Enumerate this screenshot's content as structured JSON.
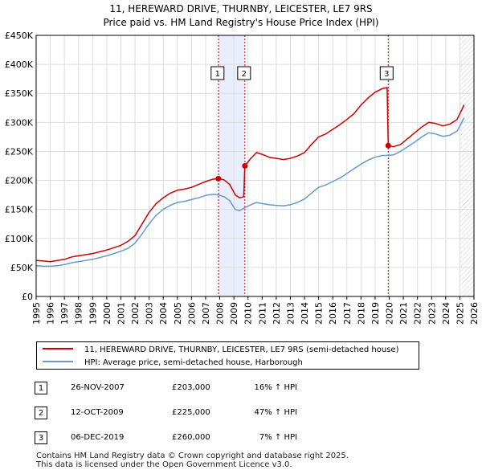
{
  "title_line1": "11, HEREWARD DRIVE, THURNBY, LEICESTER, LE7 9RS",
  "title_line2": "Price paid vs. HM Land Registry's House Price Index (HPI)",
  "chart_data": {
    "type": "line",
    "title": "11, HEREWARD DRIVE, THURNBY, LEICESTER, LE7 9RS — Price paid vs. HM Land Registry's House Price Index (HPI)",
    "xlabel": "",
    "ylabel": "",
    "xlim": [
      1995,
      2026
    ],
    "ylim": [
      0,
      450000
    ],
    "x_ticks": [
      1995,
      1996,
      1997,
      1998,
      1999,
      2000,
      2001,
      2002,
      2003,
      2004,
      2005,
      2006,
      2007,
      2008,
      2009,
      2010,
      2011,
      2012,
      2013,
      2014,
      2015,
      2016,
      2017,
      2018,
      2019,
      2020,
      2021,
      2022,
      2023,
      2024,
      2025,
      2026
    ],
    "y_ticks": [
      {
        "value": 0,
        "label": "£0"
      },
      {
        "value": 50000,
        "label": "£50K"
      },
      {
        "value": 100000,
        "label": "£100K"
      },
      {
        "value": 150000,
        "label": "£150K"
      },
      {
        "value": 200000,
        "label": "£200K"
      },
      {
        "value": 250000,
        "label": "£250K"
      },
      {
        "value": 300000,
        "label": "£300K"
      },
      {
        "value": 350000,
        "label": "£350K"
      },
      {
        "value": 400000,
        "label": "£400K"
      },
      {
        "value": 450000,
        "label": "£450K"
      }
    ],
    "grid": true,
    "shaded_ranges": [
      [
        2007.9,
        2009.78
      ]
    ],
    "hatched_after": 2025.0,
    "series": [
      {
        "name": "11, HEREWARD DRIVE, THURNBY, LEICESTER, LE7 9RS (semi-detached house)",
        "color": "#cc0000",
        "points": [
          [
            1995.0,
            62000
          ],
          [
            1995.5,
            61000
          ],
          [
            1996.0,
            60000
          ],
          [
            1996.5,
            62000
          ],
          [
            1997.0,
            64000
          ],
          [
            1997.5,
            68000
          ],
          [
            1998.0,
            70000
          ],
          [
            1998.5,
            72000
          ],
          [
            1999.0,
            74000
          ],
          [
            1999.5,
            77000
          ],
          [
            2000.0,
            80000
          ],
          [
            2000.5,
            84000
          ],
          [
            2001.0,
            88000
          ],
          [
            2001.5,
            95000
          ],
          [
            2002.0,
            105000
          ],
          [
            2002.5,
            125000
          ],
          [
            2003.0,
            145000
          ],
          [
            2003.5,
            160000
          ],
          [
            2004.0,
            170000
          ],
          [
            2004.5,
            178000
          ],
          [
            2005.0,
            183000
          ],
          [
            2005.5,
            185000
          ],
          [
            2006.0,
            188000
          ],
          [
            2006.5,
            193000
          ],
          [
            2007.0,
            198000
          ],
          [
            2007.5,
            202000
          ],
          [
            2007.9,
            203000
          ],
          [
            2008.3,
            201000
          ],
          [
            2008.7,
            193000
          ],
          [
            2009.1,
            175000
          ],
          [
            2009.4,
            170000
          ],
          [
            2009.7,
            172000
          ],
          [
            2009.78,
            225000
          ],
          [
            2010.2,
            238000
          ],
          [
            2010.6,
            248000
          ],
          [
            2011.0,
            245000
          ],
          [
            2011.5,
            240000
          ],
          [
            2012.0,
            238000
          ],
          [
            2012.5,
            236000
          ],
          [
            2013.0,
            238000
          ],
          [
            2013.5,
            242000
          ],
          [
            2014.0,
            248000
          ],
          [
            2014.5,
            262000
          ],
          [
            2015.0,
            275000
          ],
          [
            2015.5,
            280000
          ],
          [
            2016.0,
            288000
          ],
          [
            2016.5,
            296000
          ],
          [
            2017.0,
            305000
          ],
          [
            2017.5,
            315000
          ],
          [
            2018.0,
            330000
          ],
          [
            2018.5,
            342000
          ],
          [
            2019.0,
            352000
          ],
          [
            2019.5,
            358000
          ],
          [
            2019.85,
            360000
          ],
          [
            2019.93,
            260000
          ],
          [
            2020.3,
            258000
          ],
          [
            2020.8,
            262000
          ],
          [
            2021.3,
            272000
          ],
          [
            2021.8,
            282000
          ],
          [
            2022.3,
            292000
          ],
          [
            2022.8,
            300000
          ],
          [
            2023.3,
            298000
          ],
          [
            2023.8,
            294000
          ],
          [
            2024.3,
            297000
          ],
          [
            2024.8,
            305000
          ],
          [
            2025.1,
            320000
          ],
          [
            2025.3,
            330000
          ]
        ]
      },
      {
        "name": "HPI: Average price, semi-detached house, Harborough",
        "color": "#6699cc",
        "points": [
          [
            1995.0,
            53000
          ],
          [
            1995.5,
            52000
          ],
          [
            1996.0,
            52000
          ],
          [
            1996.5,
            53000
          ],
          [
            1997.0,
            55000
          ],
          [
            1997.5,
            58000
          ],
          [
            1998.0,
            60000
          ],
          [
            1998.5,
            62000
          ],
          [
            1999.0,
            64000
          ],
          [
            1999.5,
            67000
          ],
          [
            2000.0,
            70000
          ],
          [
            2000.5,
            74000
          ],
          [
            2001.0,
            78000
          ],
          [
            2001.5,
            83000
          ],
          [
            2002.0,
            92000
          ],
          [
            2002.5,
            108000
          ],
          [
            2003.0,
            125000
          ],
          [
            2003.5,
            140000
          ],
          [
            2004.0,
            150000
          ],
          [
            2004.5,
            157000
          ],
          [
            2005.0,
            162000
          ],
          [
            2005.5,
            164000
          ],
          [
            2006.0,
            167000
          ],
          [
            2006.5,
            170000
          ],
          [
            2007.0,
            174000
          ],
          [
            2007.5,
            176000
          ],
          [
            2007.9,
            175000
          ],
          [
            2008.3,
            172000
          ],
          [
            2008.7,
            165000
          ],
          [
            2009.1,
            150000
          ],
          [
            2009.4,
            148000
          ],
          [
            2009.78,
            153000
          ],
          [
            2010.2,
            158000
          ],
          [
            2010.6,
            162000
          ],
          [
            2011.0,
            160000
          ],
          [
            2011.5,
            158000
          ],
          [
            2012.0,
            157000
          ],
          [
            2012.5,
            156000
          ],
          [
            2013.0,
            158000
          ],
          [
            2013.5,
            162000
          ],
          [
            2014.0,
            168000
          ],
          [
            2014.5,
            178000
          ],
          [
            2015.0,
            188000
          ],
          [
            2015.5,
            192000
          ],
          [
            2016.0,
            198000
          ],
          [
            2016.5,
            204000
          ],
          [
            2017.0,
            212000
          ],
          [
            2017.5,
            220000
          ],
          [
            2018.0,
            228000
          ],
          [
            2018.5,
            235000
          ],
          [
            2019.0,
            240000
          ],
          [
            2019.5,
            243000
          ],
          [
            2019.93,
            243000
          ],
          [
            2020.3,
            244000
          ],
          [
            2020.8,
            250000
          ],
          [
            2021.3,
            258000
          ],
          [
            2021.8,
            266000
          ],
          [
            2022.3,
            275000
          ],
          [
            2022.8,
            282000
          ],
          [
            2023.3,
            280000
          ],
          [
            2023.8,
            276000
          ],
          [
            2024.3,
            278000
          ],
          [
            2024.8,
            285000
          ],
          [
            2025.1,
            298000
          ],
          [
            2025.3,
            308000
          ]
        ]
      }
    ],
    "sale_markers": [
      {
        "label": "1",
        "x": 2007.9,
        "y": 203000
      },
      {
        "label": "2",
        "x": 2009.78,
        "y": 225000
      },
      {
        "label": "3",
        "x": 2019.93,
        "y": 260000
      }
    ]
  },
  "legend": {
    "property_label": "11, HEREWARD DRIVE, THURNBY, LEICESTER, LE7 9RS (semi-detached house)",
    "hpi_label": "HPI: Average price, semi-detached house, Harborough"
  },
  "sales": [
    {
      "num": "1",
      "date": "26-NOV-2007",
      "price": "£203,000",
      "hpi": "16% ↑ HPI"
    },
    {
      "num": "2",
      "date": "12-OCT-2009",
      "price": "£225,000",
      "hpi": "47% ↑ HPI"
    },
    {
      "num": "3",
      "date": "06-DEC-2019",
      "price": "£260,000",
      "hpi": "7% ↑ HPI"
    }
  ],
  "footer_line1": "Contains HM Land Registry data © Crown copyright and database right 2025.",
  "footer_line2": "This data is licensed under the Open Government Licence v3.0."
}
